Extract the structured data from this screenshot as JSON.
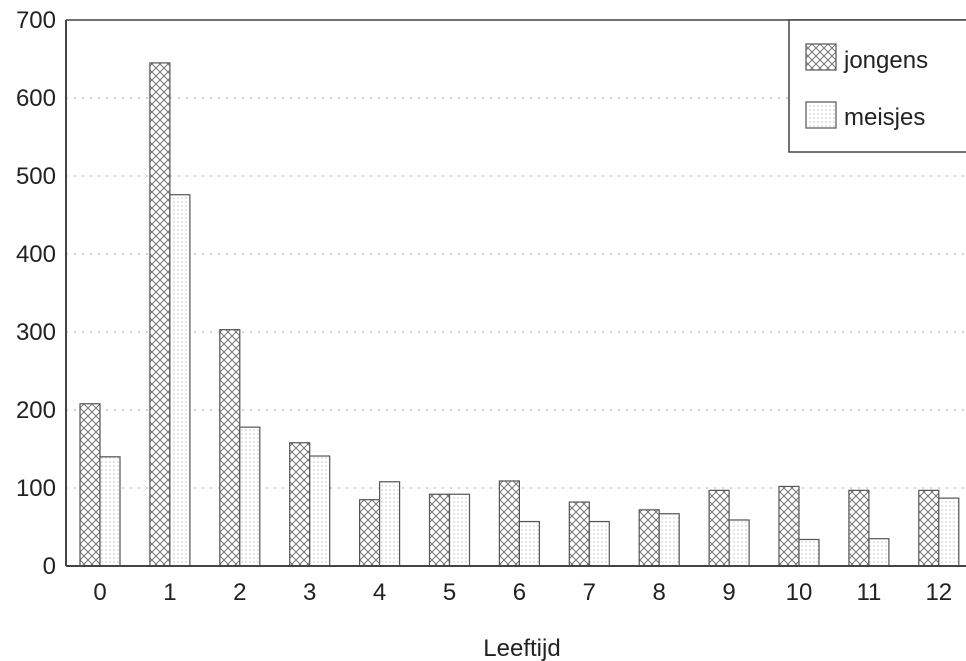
{
  "chart_data": {
    "type": "bar",
    "title": "",
    "xlabel": "Leeftijd",
    "ylabel": "",
    "ylim": [
      0,
      700
    ],
    "yticks": [
      0,
      100,
      200,
      300,
      400,
      500,
      600,
      700
    ],
    "grid": "horizontal dotted",
    "legend_position": "top-right",
    "categories": [
      "0",
      "1",
      "2",
      "3",
      "4",
      "5",
      "6",
      "7",
      "8",
      "9",
      "10",
      "11",
      "12"
    ],
    "series": [
      {
        "name": "jongens",
        "pattern": "crosshatch",
        "values": [
          208,
          645,
          303,
          158,
          85,
          92,
          109,
          82,
          72,
          97,
          102,
          97,
          97
        ]
      },
      {
        "name": "meisjes",
        "pattern": "dotted",
        "values": [
          140,
          476,
          178,
          141,
          108,
          92,
          57,
          57,
          67,
          59,
          34,
          35,
          87
        ]
      }
    ]
  },
  "colors": {
    "axis": "#444444",
    "bar_stroke": "#555555",
    "grid": "#bbbbbb",
    "text": "#222222"
  }
}
